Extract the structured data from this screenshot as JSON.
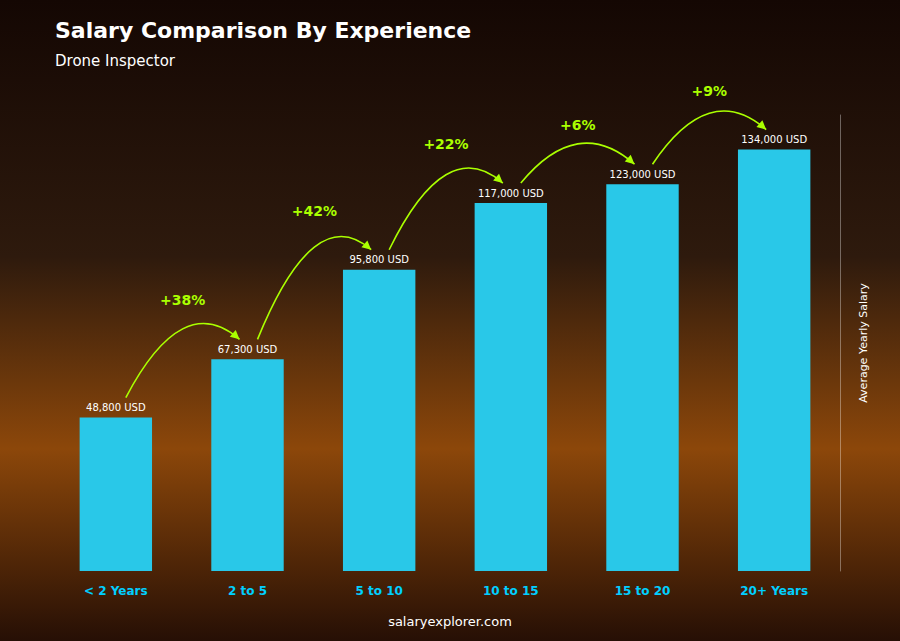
{
  "chart_data": {
    "type": "bar",
    "title": "Salary Comparison By Experience",
    "subtitle": "Drone Inspector",
    "categories": [
      "< 2 Years",
      "2 to 5",
      "5 to 10",
      "10 to 15",
      "15 to 20",
      "20+ Years"
    ],
    "values": [
      48800,
      67300,
      95800,
      117000,
      123000,
      134000
    ],
    "value_labels": [
      "48,800 USD",
      "67,300 USD",
      "95,800 USD",
      "117,000 USD",
      "123,000 USD",
      "134,000 USD"
    ],
    "data_labels": true,
    "annotations": [
      "+38%",
      "+42%",
      "+22%",
      "+6%",
      "+9%"
    ],
    "ylabel": "Average Yearly Salary",
    "footer": "salaryexplorer.com",
    "color": "#29c8e8",
    "ylim": [
      0,
      145000
    ],
    "tick_labels": "x",
    "grid": false
  }
}
